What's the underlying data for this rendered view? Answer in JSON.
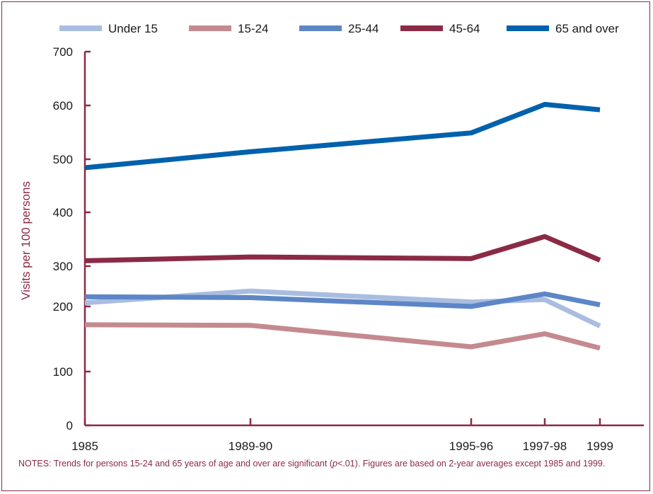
{
  "chart_data": {
    "type": "line",
    "categories": [
      "1985",
      "1989-90",
      "1995-96",
      "1997-98",
      "1999"
    ],
    "x_positions": [
      1985,
      1989.5,
      1995.5,
      1997.5,
      1999
    ],
    "ylabel": "Visits per 100 persons",
    "yticks": [
      0,
      100,
      200,
      300,
      400,
      500,
      600,
      700
    ],
    "ylim": [
      0,
      700
    ],
    "legend_position": "top",
    "series": [
      {
        "name": "Under 15",
        "color": "#a9bde0",
        "values": [
          209,
          238,
          211,
          217,
          170
        ]
      },
      {
        "name": "15-24",
        "color": "#c48a8f",
        "values": [
          172,
          171,
          138,
          158,
          136
        ]
      },
      {
        "name": "25-44",
        "color": "#5d86c7",
        "values": [
          224,
          222,
          200,
          231,
          204
        ]
      },
      {
        "name": "45-64",
        "color": "#8b2a45",
        "values": [
          310,
          317,
          314,
          355,
          311
        ]
      },
      {
        "name": "65 and over",
        "color": "#0061ad",
        "values": [
          484,
          514,
          549,
          602,
          592
        ]
      }
    ]
  },
  "notes": {
    "prefix": "NOTES: Trends for persons 15-24 and 65 years of age and over are significant (",
    "italic": "p",
    "suffix": "<.01). Figures are based on 2-year averages except 1985 and 1999."
  },
  "colors": {
    "axis": "#8b2a45",
    "frame": "#8b2a45"
  }
}
